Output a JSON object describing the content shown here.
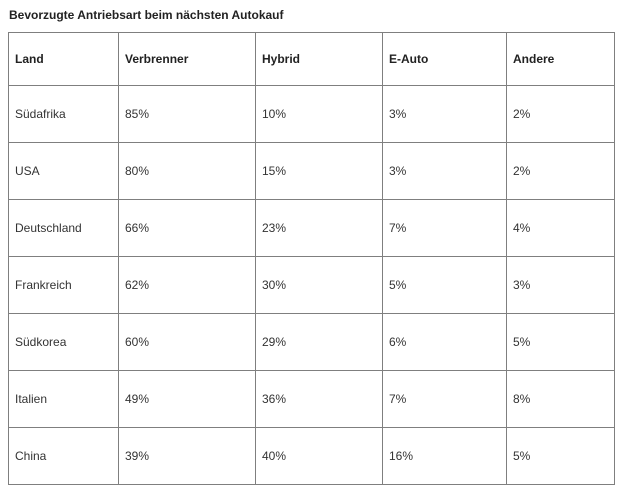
{
  "page": {
    "title": "Bevorzugte Antriebsart beim nächsten Autokauf"
  },
  "chart_data": {
    "type": "table",
    "title": "Bevorzugte Antriebsart beim nächsten Autokauf",
    "columns": [
      "Land",
      "Verbrenner",
      "Hybrid",
      "E-Auto",
      "Andere"
    ],
    "rows": [
      [
        "Südafrika",
        "85%",
        "10%",
        "3%",
        "2%"
      ],
      [
        "USA",
        "80%",
        "15%",
        "3%",
        "2%"
      ],
      [
        "Deutschland",
        "66%",
        "23%",
        "7%",
        "4%"
      ],
      [
        "Frankreich",
        "62%",
        "30%",
        "5%",
        "3%"
      ],
      [
        "Südkorea",
        "60%",
        "29%",
        "6%",
        "5%"
      ],
      [
        "Italien",
        "49%",
        "36%",
        "7%",
        "8%"
      ],
      [
        "China",
        "39%",
        "40%",
        "16%",
        "5%"
      ]
    ],
    "values_numeric": {
      "categories": [
        "Südafrika",
        "USA",
        "Deutschland",
        "Frankreich",
        "Südkorea",
        "Italien",
        "China"
      ],
      "series": [
        {
          "name": "Verbrenner",
          "values": [
            85,
            80,
            66,
            62,
            60,
            49,
            39
          ]
        },
        {
          "name": "Hybrid",
          "values": [
            10,
            15,
            23,
            30,
            29,
            36,
            40
          ]
        },
        {
          "name": "E-Auto",
          "values": [
            3,
            3,
            7,
            5,
            6,
            7,
            16
          ]
        },
        {
          "name": "Andere",
          "values": [
            2,
            2,
            4,
            3,
            5,
            8,
            5
          ]
        }
      ],
      "unit": "%"
    },
    "layout": {
      "grid": "all-cell-borders",
      "border_color": "#7f7f7f",
      "background": "#ffffff"
    }
  }
}
